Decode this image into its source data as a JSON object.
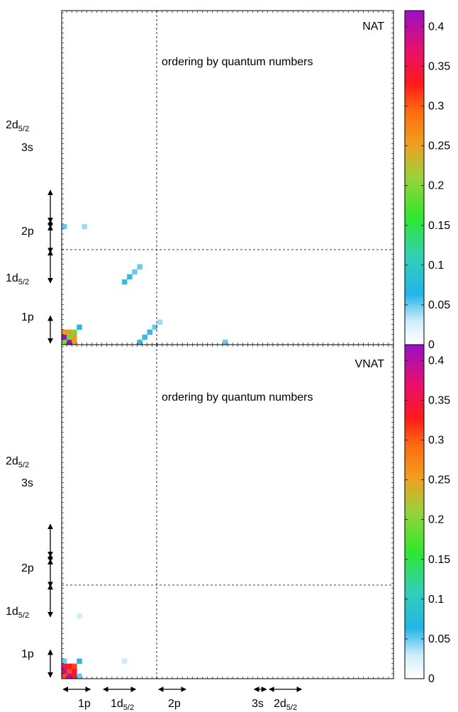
{
  "chart_data": {
    "type": "heatmap",
    "panels": [
      {
        "label": "NAT",
        "annotation": "ordering by quantum numbers",
        "colorbar_ticks": [
          "0",
          "0.05",
          "0.1",
          "0.15",
          "0.2",
          "0.25",
          "0.3",
          "0.35",
          "0.4"
        ],
        "colorbar_range": [
          0,
          0.42
        ],
        "y_axis_groups": [
          {
            "label": "1p",
            "sub": ""
          },
          {
            "label": "1d",
            "sub": "5/2"
          },
          {
            "label": "2p",
            "sub": ""
          },
          {
            "label": "3s",
            "sub": ""
          },
          {
            "label": "2d",
            "sub": "5/2"
          }
        ],
        "cells": [
          {
            "row": 1,
            "col": 2,
            "value": 0.42
          },
          {
            "row": 2,
            "col": 1,
            "value": 0.42
          },
          {
            "row": 1,
            "col": 3,
            "value": 0.26
          },
          {
            "row": 3,
            "col": 1,
            "value": 0.26
          },
          {
            "row": 2,
            "col": 3,
            "value": 0.26
          },
          {
            "row": 3,
            "col": 2,
            "value": 0.26
          },
          {
            "row": 1,
            "col": 1,
            "value": 0.19
          },
          {
            "row": 2,
            "col": 2,
            "value": 0.19
          },
          {
            "row": 3,
            "col": 3,
            "value": 0.19
          },
          {
            "row": 4,
            "col": 4,
            "value": 0.07
          },
          {
            "row": 13,
            "col": 13,
            "value": 0.06
          },
          {
            "row": 14,
            "col": 14,
            "value": 0.06
          },
          {
            "row": 15,
            "col": 15,
            "value": 0.05
          },
          {
            "row": 16,
            "col": 16,
            "value": 0.05
          },
          {
            "row": 1,
            "col": 16,
            "value": 0.06
          },
          {
            "row": 2,
            "col": 17,
            "value": 0.06
          },
          {
            "row": 3,
            "col": 18,
            "value": 0.06
          },
          {
            "row": 4,
            "col": 19,
            "value": 0.05
          },
          {
            "row": 5,
            "col": 20,
            "value": 0.04
          },
          {
            "row": 1,
            "col": 33,
            "value": 0.05
          },
          {
            "row": 24,
            "col": 1,
            "value": 0.05
          },
          {
            "row": 24,
            "col": 5,
            "value": 0.04
          }
        ]
      },
      {
        "label": "VNAT",
        "annotation": "ordering by quantum numbers",
        "colorbar_ticks": [
          "0",
          "0.05",
          "0.1",
          "0.15",
          "0.2",
          "0.25",
          "0.3",
          "0.35",
          "0.4"
        ],
        "colorbar_range": [
          0,
          0.42
        ],
        "y_axis_groups": [
          {
            "label": "1p",
            "sub": ""
          },
          {
            "label": "1d",
            "sub": "5/2"
          },
          {
            "label": "2p",
            "sub": ""
          },
          {
            "label": "3s",
            "sub": ""
          },
          {
            "label": "2d",
            "sub": "5/2"
          }
        ],
        "cells": [
          {
            "row": 1,
            "col": 2,
            "value": 0.4
          },
          {
            "row": 2,
            "col": 1,
            "value": 0.4
          },
          {
            "row": 1,
            "col": 3,
            "value": 0.34
          },
          {
            "row": 3,
            "col": 1,
            "value": 0.34
          },
          {
            "row": 2,
            "col": 3,
            "value": 0.34
          },
          {
            "row": 3,
            "col": 2,
            "value": 0.34
          },
          {
            "row": 1,
            "col": 1,
            "value": 0.31
          },
          {
            "row": 2,
            "col": 2,
            "value": 0.31
          },
          {
            "row": 3,
            "col": 3,
            "value": 0.31
          },
          {
            "row": 4,
            "col": 4,
            "value": 0.07
          },
          {
            "row": 1,
            "col": 4,
            "value": 0.05
          },
          {
            "row": 4,
            "col": 1,
            "value": 0.05
          },
          {
            "row": 13,
            "col": 4,
            "value": 0.03
          },
          {
            "row": 4,
            "col": 13,
            "value": 0.03
          }
        ]
      }
    ],
    "x_axis_groups": [
      {
        "label": "1p",
        "sub": ""
      },
      {
        "label": "1d",
        "sub": "5/2"
      },
      {
        "label": "2p",
        "sub": ""
      },
      {
        "label": "3s",
        "sub": ""
      },
      {
        "label": "2d",
        "sub": "5/2"
      }
    ]
  }
}
